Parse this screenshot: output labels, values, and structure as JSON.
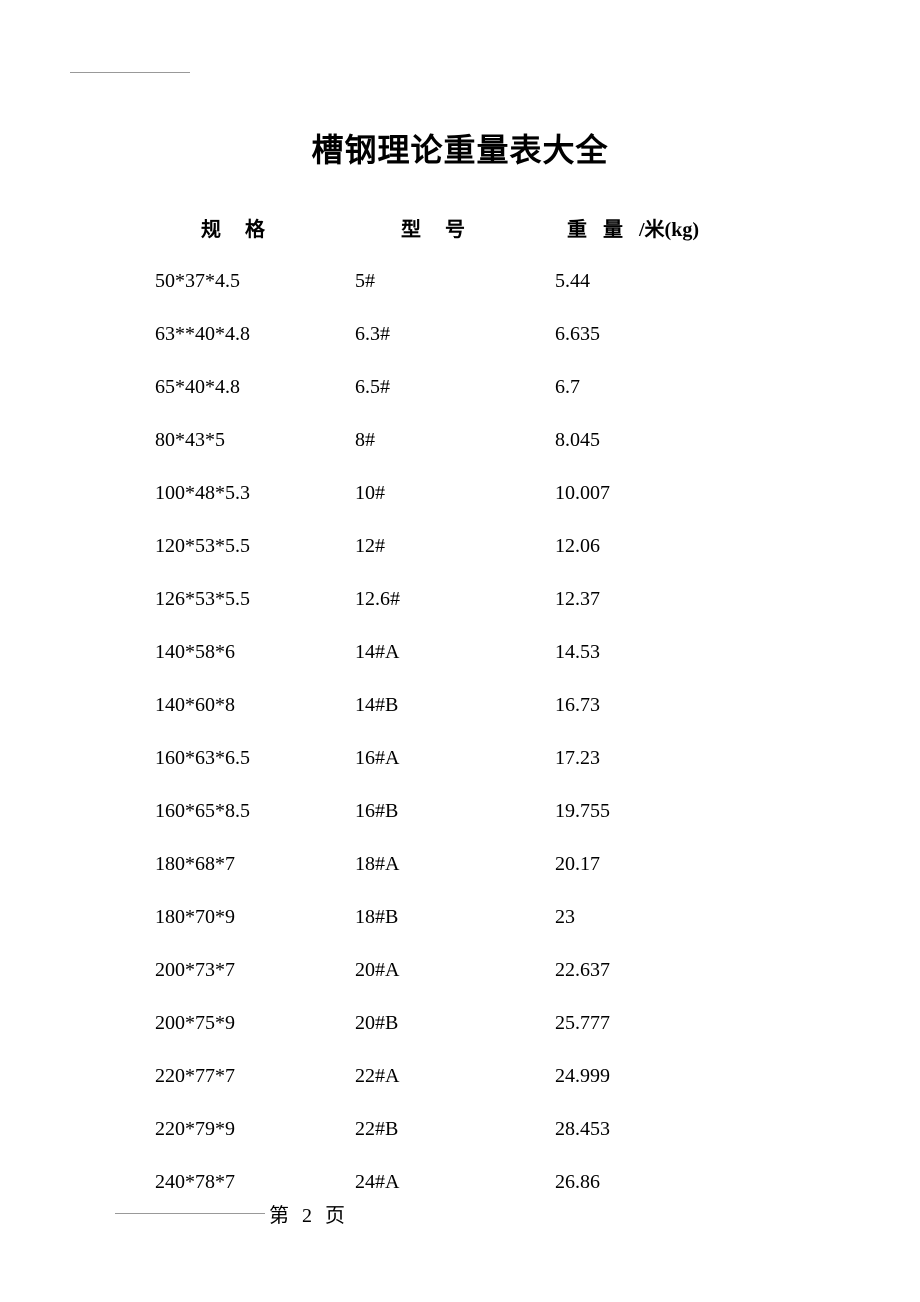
{
  "title": "槽钢理论重量表大全",
  "headers": {
    "spec": "规格",
    "model": "型号",
    "weight_prefix": "重量",
    "weight_suffix": "/米(kg)"
  },
  "rows": [
    {
      "spec": "50*37*4.5",
      "model": "5#",
      "weight": "5.44"
    },
    {
      "spec": "63**40*4.8",
      "model": "6.3#",
      "weight": "6.635"
    },
    {
      "spec": "65*40*4.8",
      "model": "6.5#",
      "weight": "6.7"
    },
    {
      "spec": "80*43*5",
      "model": "8#",
      "weight": "8.045"
    },
    {
      "spec": "100*48*5.3",
      "model": "10#",
      "weight": "10.007"
    },
    {
      "spec": "120*53*5.5",
      "model": "12#",
      "weight": "12.06"
    },
    {
      "spec": "126*53*5.5",
      "model": "12.6#",
      "weight": "12.37"
    },
    {
      "spec": "140*58*6",
      "model": "14#A",
      "weight": "14.53"
    },
    {
      "spec": "140*60*8",
      "model": "14#B",
      "weight": "16.73"
    },
    {
      "spec": "160*63*6.5",
      "model": "16#A",
      "weight": "17.23"
    },
    {
      "spec": "160*65*8.5",
      "model": "16#B",
      "weight": "19.755"
    },
    {
      "spec": "180*68*7",
      "model": "18#A",
      "weight": "20.17"
    },
    {
      "spec": "180*70*9",
      "model": "18#B",
      "weight": "23"
    },
    {
      "spec": "200*73*7",
      "model": "20#A",
      "weight": "22.637"
    },
    {
      "spec": "200*75*9",
      "model": "20#B",
      "weight": "25.777"
    },
    {
      "spec": "220*77*7",
      "model": "22#A",
      "weight": "24.999"
    },
    {
      "spec": "220*79*9",
      "model": "22#B",
      "weight": "28.453"
    },
    {
      "spec": "240*78*7",
      "model": "24#A",
      "weight": "26.86"
    }
  ],
  "footer": {
    "page_label": "第 2 页"
  }
}
